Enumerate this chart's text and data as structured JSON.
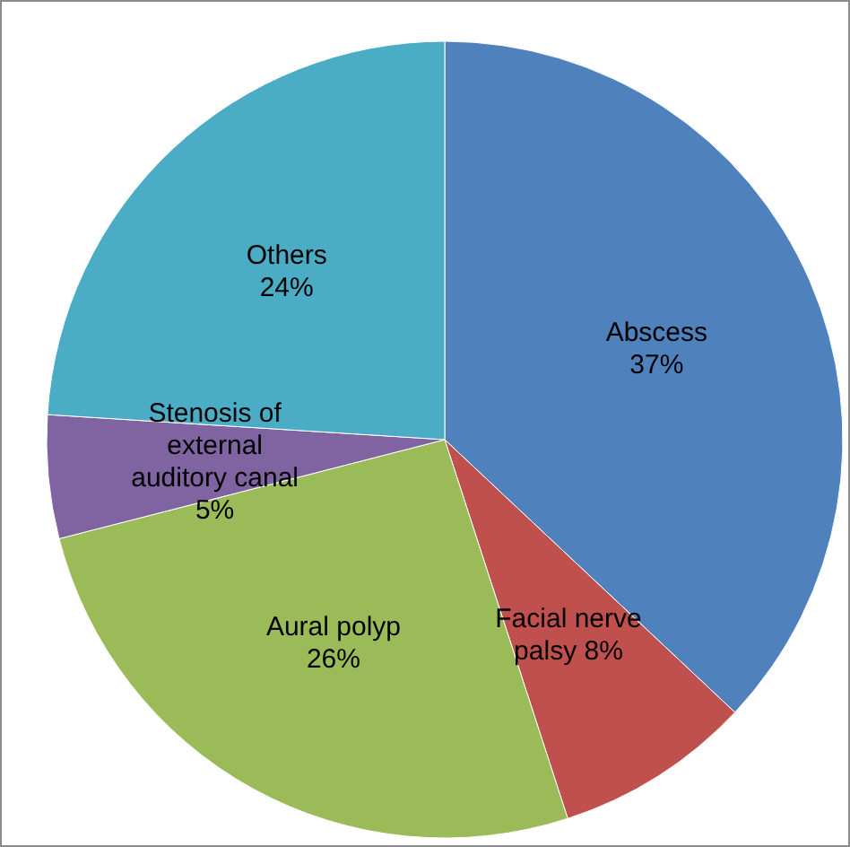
{
  "chart_data": {
    "type": "pie",
    "categories": [
      "Abscess",
      "Facial nerve palsy",
      "Aural polyp",
      "Stenosis of external auditory canal",
      "Others"
    ],
    "values": [
      37,
      8,
      26,
      5,
      24
    ],
    "colors": [
      "#4f81bd",
      "#c0504d",
      "#9bbb59",
      "#8064a2",
      "#4bacc6"
    ],
    "value_labels": [
      "37%",
      "8%",
      "26%",
      "5%",
      "24%"
    ]
  }
}
